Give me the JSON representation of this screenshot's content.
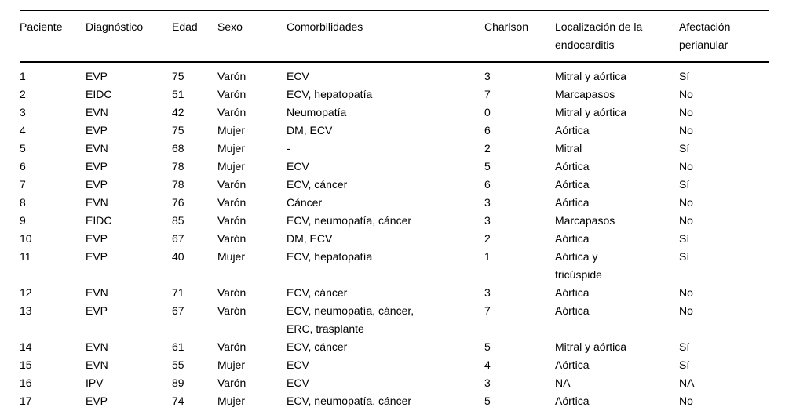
{
  "table": {
    "columns": [
      {
        "key": "paciente",
        "label": "Paciente"
      },
      {
        "key": "diagnostico",
        "label": "Diagnóstico"
      },
      {
        "key": "edad",
        "label": "Edad"
      },
      {
        "key": "sexo",
        "label": "Sexo"
      },
      {
        "key": "comorbilidades",
        "label": "Comorbilidades"
      },
      {
        "key": "charlson",
        "label": "Charlson"
      },
      {
        "key": "localizacion",
        "label": "Localización de la endocarditis"
      },
      {
        "key": "afectacion",
        "label": "Afectación perianular"
      }
    ],
    "rows": [
      {
        "paciente": "1",
        "diagnostico": "EVP",
        "edad": "75",
        "sexo": "Varón",
        "comorbilidades": "ECV",
        "charlson": "3",
        "localizacion": "Mitral y aórtica",
        "afectacion": "Sí"
      },
      {
        "paciente": "2",
        "diagnostico": "EIDC",
        "edad": "51",
        "sexo": "Varón",
        "comorbilidades": "ECV, hepatopatía",
        "charlson": "7",
        "localizacion": "Marcapasos",
        "afectacion": "No"
      },
      {
        "paciente": "3",
        "diagnostico": "EVN",
        "edad": "42",
        "sexo": "Varón",
        "comorbilidades": "Neumopatía",
        "charlson": "0",
        "localizacion": "Mitral y aórtica",
        "afectacion": "No"
      },
      {
        "paciente": "4",
        "diagnostico": "EVP",
        "edad": "75",
        "sexo": "Mujer",
        "comorbilidades": "DM, ECV",
        "charlson": "6",
        "localizacion": "Aórtica",
        "afectacion": "No"
      },
      {
        "paciente": "5",
        "diagnostico": "EVN",
        "edad": "68",
        "sexo": "Mujer",
        "comorbilidades": "-",
        "charlson": "2",
        "localizacion": "Mitral",
        "afectacion": "Sí"
      },
      {
        "paciente": "6",
        "diagnostico": "EVP",
        "edad": "78",
        "sexo": "Mujer",
        "comorbilidades": "ECV",
        "charlson": "5",
        "localizacion": "Aórtica",
        "afectacion": "No"
      },
      {
        "paciente": "7",
        "diagnostico": "EVP",
        "edad": "78",
        "sexo": "Varón",
        "comorbilidades": "ECV, cáncer",
        "charlson": "6",
        "localizacion": "Aórtica",
        "afectacion": "Sí"
      },
      {
        "paciente": "8",
        "diagnostico": "EVN",
        "edad": "76",
        "sexo": "Varón",
        "comorbilidades": "Cáncer",
        "charlson": "3",
        "localizacion": "Aórtica",
        "afectacion": "No"
      },
      {
        "paciente": "9",
        "diagnostico": "EIDC",
        "edad": "85",
        "sexo": "Varón",
        "comorbilidades": "ECV, neumopatía, cáncer",
        "charlson": "3",
        "localizacion": "Marcapasos",
        "afectacion": "No"
      },
      {
        "paciente": "10",
        "diagnostico": "EVP",
        "edad": "67",
        "sexo": "Varón",
        "comorbilidades": "DM, ECV",
        "charlson": "2",
        "localizacion": "Aórtica",
        "afectacion": "Sí"
      },
      {
        "paciente": "11",
        "diagnostico": "EVP",
        "edad": "40",
        "sexo": "Mujer",
        "comorbilidades": "ECV, hepatopatía",
        "charlson": "1",
        "localizacion": "Aórtica y tricúspide",
        "afectacion": "Sí"
      },
      {
        "paciente": "12",
        "diagnostico": "EVN",
        "edad": "71",
        "sexo": "Varón",
        "comorbilidades": "ECV, cáncer",
        "charlson": "3",
        "localizacion": "Aórtica",
        "afectacion": "No"
      },
      {
        "paciente": "13",
        "diagnostico": "EVP",
        "edad": "67",
        "sexo": "Varón",
        "comorbilidades": "ECV, neumopatía, cáncer, ERC, trasplante",
        "charlson": "7",
        "localizacion": "Aórtica",
        "afectacion": "No"
      },
      {
        "paciente": "14",
        "diagnostico": "EVN",
        "edad": "61",
        "sexo": "Varón",
        "comorbilidades": "ECV, cáncer",
        "charlson": "5",
        "localizacion": "Mitral y aórtica",
        "afectacion": "Sí"
      },
      {
        "paciente": "15",
        "diagnostico": "EVN",
        "edad": "55",
        "sexo": "Mujer",
        "comorbilidades": "ECV",
        "charlson": "4",
        "localizacion": "Aórtica",
        "afectacion": "Sí"
      },
      {
        "paciente": "16",
        "diagnostico": "IPV",
        "edad": "89",
        "sexo": "Varón",
        "comorbilidades": "ECV",
        "charlson": "3",
        "localizacion": "NA",
        "afectacion": "NA"
      },
      {
        "paciente": "17",
        "diagnostico": "EVP",
        "edad": "74",
        "sexo": "Mujer",
        "comorbilidades": "ECV, neumopatía, cáncer",
        "charlson": "5",
        "localizacion": "Aórtica",
        "afectacion": "No"
      }
    ]
  }
}
